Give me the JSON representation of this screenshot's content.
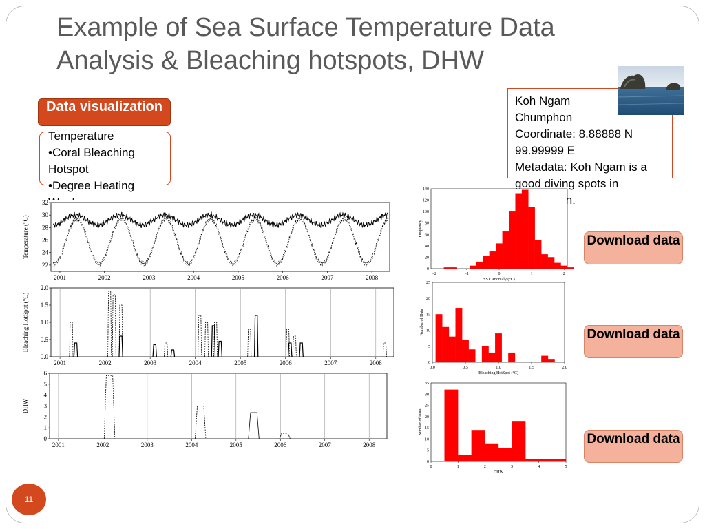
{
  "slide": {
    "title_line1": "Example of Sea Surface Temperature Data",
    "title_line2": "Analysis & Bleaching hotspots, DHW",
    "page_number": "11"
  },
  "data_visualization": {
    "label": "Data visualization"
  },
  "bullets": {
    "line1": "Temperature",
    "line2": "•Coral Bleaching Hotspot",
    "line3": "•Degree Heating Weeks"
  },
  "site_info": {
    "name": "Koh Ngam",
    "province": "Chumphon",
    "coordinate": "Coordinate: 8.88888 N 99.99999 E",
    "metadata": "Metadata: Koh Ngam is a good diving spots in Chumphon."
  },
  "downloads": [
    {
      "label": "Download data"
    },
    {
      "label": "Download data"
    },
    {
      "label": "Download data"
    }
  ],
  "chart_data": [
    {
      "type": "line",
      "ylabel": "Temperature (°C)",
      "yticks": [
        "32",
        "30",
        "28",
        "26",
        "24",
        "22"
      ],
      "ylim": [
        21,
        32
      ],
      "xticks": [
        "2001",
        "2002",
        "2003",
        "2004",
        "2005",
        "2006",
        "2007",
        "2008"
      ],
      "xlim": [
        2000.8,
        2008.4
      ],
      "series": [
        {
          "style": "solid",
          "values_note": "",
          "mean": 29.2,
          "amplitude": 0.8
        },
        {
          "style": "dashed",
          "mean": 25.8,
          "amplitude": 3.6
        }
      ]
    },
    {
      "type": "line",
      "ylabel": "Bleaching HotSpot (°C)",
      "yticks": [
        "2.0",
        "1.5",
        "1.0",
        "0.5",
        "0.0"
      ],
      "ylim": [
        0,
        2.0
      ],
      "xticks": [
        "2001",
        "2002",
        "2003",
        "2004",
        "2005",
        "2006",
        "2007",
        "2008"
      ],
      "xlim": [
        2000.8,
        2008.4
      ],
      "series": [
        {
          "style": "solid",
          "events": [
            [
              2001.35,
              0.4
            ],
            [
              2002.35,
              0.6
            ],
            [
              2003.1,
              0.35
            ],
            [
              2003.5,
              0.2
            ],
            [
              2004.4,
              0.9
            ],
            [
              2004.55,
              0.45
            ],
            [
              2005.35,
              1.2
            ],
            [
              2006.1,
              0.4
            ],
            [
              2006.35,
              0.4
            ]
          ]
        },
        {
          "style": "dashed",
          "events": [
            [
              2001.25,
              1.0
            ],
            [
              2002.1,
              1.9
            ],
            [
              2002.2,
              1.8
            ],
            [
              2002.35,
              1.5
            ],
            [
              2003.35,
              0.4
            ],
            [
              2004.1,
              1.2
            ],
            [
              2004.25,
              1.0
            ],
            [
              2004.45,
              1.0
            ],
            [
              2005.2,
              0.8
            ],
            [
              2006.05,
              0.8
            ],
            [
              2006.2,
              0.6
            ],
            [
              2008.2,
              0.4
            ]
          ]
        }
      ]
    },
    {
      "type": "line",
      "ylabel": "DHW",
      "yticks": [
        "6",
        "5",
        "4",
        "3",
        "2",
        "1",
        "0"
      ],
      "ylim": [
        0,
        6
      ],
      "xticks": [
        "2001",
        "2002",
        "2003",
        "2004",
        "2005",
        "2006",
        "2007",
        "2008"
      ],
      "xlim": [
        2000.8,
        2008.4
      ],
      "series": [
        {
          "style": "dashed",
          "events": [
            [
              2002.15,
              5.8
            ],
            [
              2004.2,
              3.0
            ],
            [
              2006.1,
              0.5
            ]
          ]
        },
        {
          "style": "solid",
          "events": [
            [
              2005.4,
              2.4
            ]
          ]
        }
      ]
    },
    {
      "type": "bar",
      "xlabel": "SST Anomaly (°C)",
      "ylabel": "Frequency",
      "yticks": [
        "140",
        "120",
        "100",
        "80",
        "60",
        "40",
        "20",
        "0"
      ],
      "ylim": [
        0,
        140
      ],
      "xticks": [
        "−2",
        "−1",
        "0",
        "1",
        "2"
      ],
      "xlim": [
        -2.1,
        2.1
      ],
      "bin_start": -1.7,
      "bin_width": 0.2,
      "values": [
        2,
        2,
        0,
        0,
        5,
        12,
        22,
        30,
        44,
        65,
        100,
        132,
        138,
        108,
        50,
        25,
        20,
        10,
        5,
        2
      ],
      "color": "#ff0000"
    },
    {
      "type": "bar",
      "xlabel": "Bleaching HotSpot (°C)",
      "ylabel": "Number of Data",
      "yticks": [
        "25",
        "20",
        "15",
        "10",
        "5",
        "0"
      ],
      "ylim": [
        0,
        25
      ],
      "xticks": [
        "0.0",
        "0.5",
        "1.0",
        "1.5",
        "2.0"
      ],
      "xlim": [
        0,
        2.0
      ],
      "bin_start": 0.05,
      "bin_width": 0.1,
      "values": [
        15,
        11,
        8,
        17,
        7,
        4,
        0,
        5,
        3,
        9,
        0,
        3,
        0,
        0,
        0,
        0,
        2,
        1
      ],
      "color": "#ff0000"
    },
    {
      "type": "bar",
      "xlabel": "DHW",
      "ylabel": "Number of Data",
      "yticks": [
        "35",
        "30",
        "25",
        "20",
        "15",
        "10",
        "5",
        "0"
      ],
      "ylim": [
        0,
        35
      ],
      "xticks": [
        "0",
        "1",
        "2",
        "3",
        "4",
        "5"
      ],
      "xlim": [
        0,
        5
      ],
      "bin_start": 0.5,
      "bin_width": 0.5,
      "values": [
        32,
        3,
        14,
        8,
        6,
        18,
        1,
        1,
        1
      ],
      "color": "#ff0000"
    }
  ]
}
